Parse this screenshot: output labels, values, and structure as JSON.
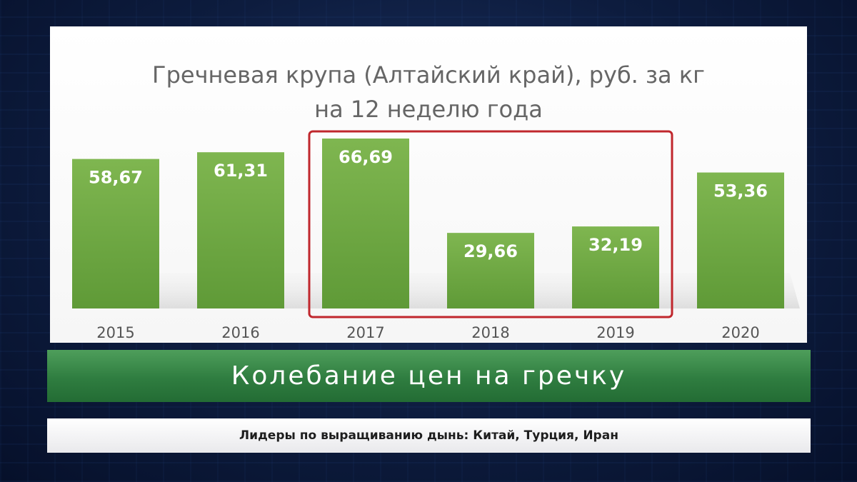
{
  "chart_data": {
    "type": "bar",
    "title_lines": [
      "Гречневая крупа (Алтайский край), руб. за кг",
      "на 12 неделю года"
    ],
    "categories": [
      "2015",
      "2016",
      "2017",
      "2018",
      "2019",
      "2020"
    ],
    "values": [
      58.67,
      61.31,
      66.69,
      29.66,
      32.19,
      53.36
    ],
    "value_labels": [
      "58,67",
      "61,31",
      "66,69",
      "29,66",
      "32,19",
      "53,36"
    ],
    "highlight_categories": [
      "2017",
      "2018",
      "2019"
    ],
    "bar_color": "#7cb34e",
    "highlight_color": "#c0272d",
    "ylim": [
      0,
      66.69
    ],
    "grid": false
  },
  "caption": {
    "text": "Колебание цен на гречку"
  },
  "ticker": {
    "text": "Лидеры по выращиванию дынь: Китай, Турция, Иран"
  }
}
